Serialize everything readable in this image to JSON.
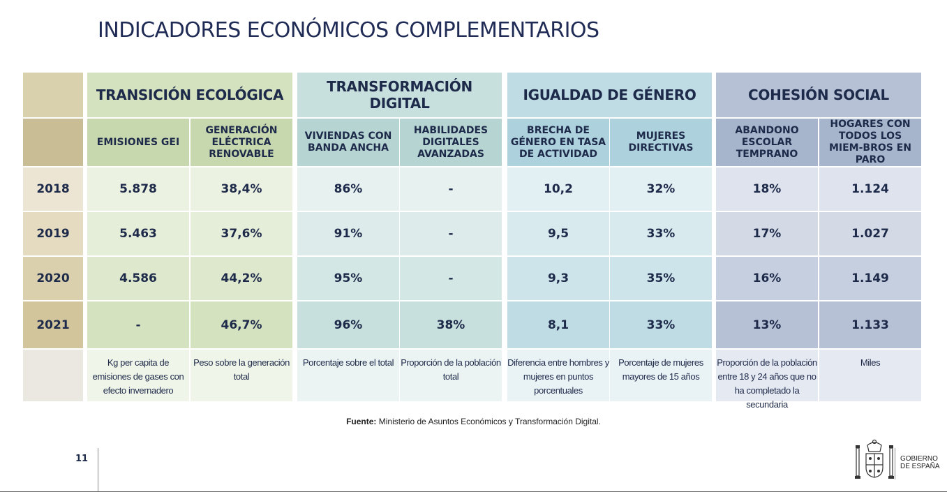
{
  "title": "INDICADORES ECONÓMICOS COMPLEMENTARIOS",
  "sections": [
    {
      "label": "TRANSICIÓN ECOLÓGICA",
      "color": "#d4e2bf",
      "color_dark": "#c7d8ae"
    },
    {
      "label": "TRANSFORMACIÓN DIGITAL",
      "color": "#c7e0de",
      "color_dark": "#b5d4d2"
    },
    {
      "label": "IGUALDAD DE GÉNERO",
      "color": "#bfdce5",
      "color_dark": "#aed1de"
    },
    {
      "label": "COHESIÓN SOCIAL",
      "color": "#b6c1d6",
      "color_dark": "#a7b5cc"
    }
  ],
  "indicators": [
    {
      "label": "EMISIONES GEI",
      "unit": "Kg per capita de emisiones de gases con efecto invernadero"
    },
    {
      "label": "GENERACIÓN ELÉCTRICA RENOVABLE",
      "unit": "Peso sobre la generación total"
    },
    {
      "label": "VIVIENDAS CON BANDA ANCHA",
      "unit": "Porcentaje sobre el total"
    },
    {
      "label": "HABILIDADES DIGITALES AVANZADAS",
      "unit": "Proporción de la población total"
    },
    {
      "label": "BRECHA DE GÉNERO EN TASA DE ACTIVIDAD",
      "unit": "Diferencia entre hombres y mujeres en puntos porcentuales"
    },
    {
      "label": "MUJERES DIRECTIVAS",
      "unit": "Porcentaje de mujeres mayores de 15 años"
    },
    {
      "label": "ABANDONO ESCOLAR TEMPRANO",
      "unit": "Proporción de la población entre 18 y 24 años que no ha completado la secundaria"
    },
    {
      "label": "HOGARES CON TODOS LOS MIEM-BROS EN PARO",
      "unit": "Miles"
    }
  ],
  "rows": [
    {
      "year": "2018",
      "values": [
        "5.878",
        "38,4%",
        "86%",
        "-",
        "10,2",
        "32%",
        "18%",
        "1.124"
      ]
    },
    {
      "year": "2019",
      "values": [
        "5.463",
        "37,6%",
        "91%",
        "-",
        "9,5",
        "33%",
        "17%",
        "1.027"
      ]
    },
    {
      "year": "2020",
      "values": [
        "4.586",
        "44,2%",
        "95%",
        "-",
        "9,3",
        "35%",
        "16%",
        "1.149"
      ]
    },
    {
      "year": "2021",
      "values": [
        "-",
        "46,7%",
        "96%",
        "38%",
        "8,1",
        "33%",
        "13%",
        "1.133"
      ]
    }
  ],
  "source": {
    "label": "Fuente:",
    "text": "Ministerio de Asuntos Económicos y Transformación Digital."
  },
  "page_number": "11",
  "logo": {
    "line1": "GOBIERNO",
    "line2": "DE ESPAÑA"
  }
}
